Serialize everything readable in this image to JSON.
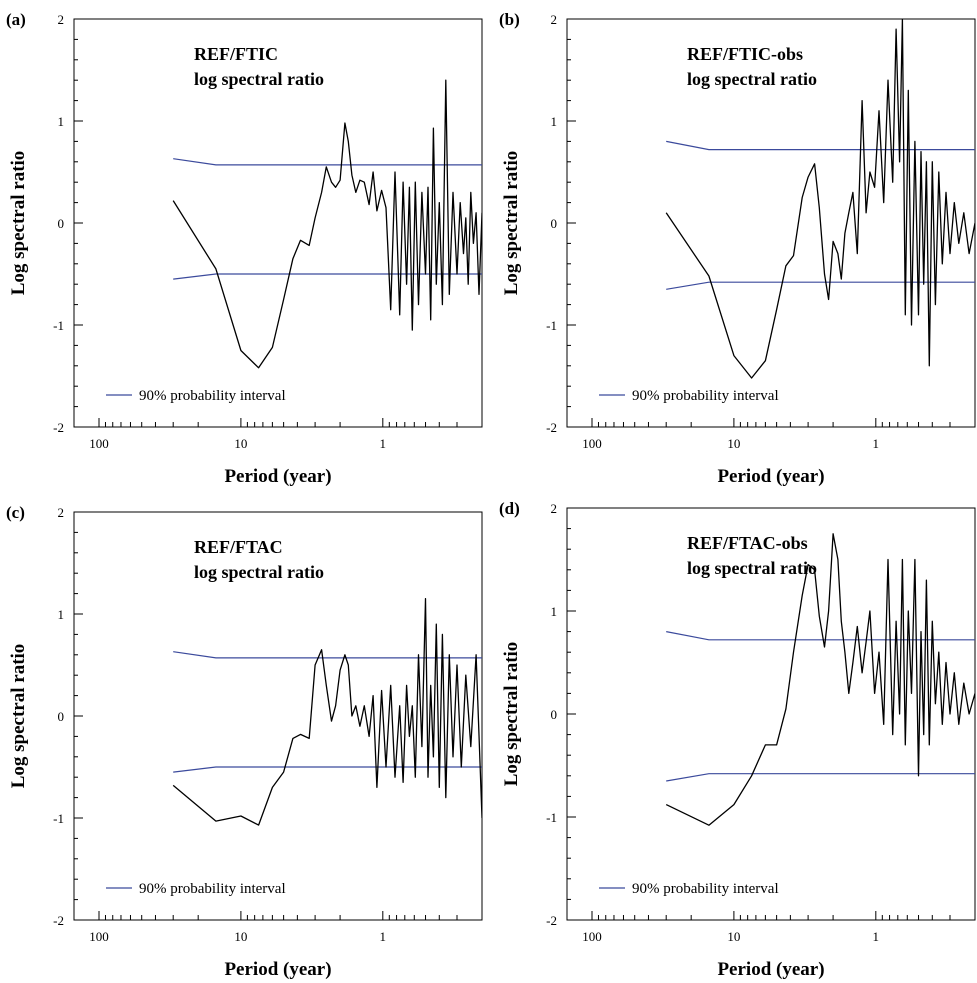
{
  "chart_data": [
    {
      "type": "line",
      "panel_label": "(a)",
      "title_lines": [
        "REF/FTIC",
        "log spectral ratio"
      ],
      "xlabel": "Period (year)",
      "ylabel": "Log spectral ratio",
      "x_scale": "log-reversed",
      "xlim": [
        150,
        0.2
      ],
      "ylim": [
        -2,
        2
      ],
      "x_ticks": [
        100,
        10,
        1
      ],
      "y_ticks": [
        -2,
        -1,
        0,
        1,
        2
      ],
      "legend": "90% probability interval",
      "legend_location": "bottom-left",
      "colors": {
        "ratio": "#000000",
        "interval": "#3b4a9c"
      },
      "interval_upper": {
        "x": [
          30,
          15,
          0.2
        ],
        "y": [
          0.63,
          0.57,
          0.57
        ]
      },
      "interval_lower": {
        "x": [
          30,
          15,
          0.2
        ],
        "y": [
          -0.55,
          -0.5,
          -0.5
        ]
      },
      "series": [
        {
          "x": [
            30,
            15,
            10,
            7.5,
            6,
            5,
            4.3,
            3.8,
            3.3,
            3,
            2.7,
            2.5,
            2.3,
            2.15,
            2,
            1.85,
            1.75,
            1.65,
            1.55,
            1.45,
            1.35,
            1.25,
            1.17,
            1.1,
            1.02,
            0.95,
            0.88,
            0.82,
            0.76,
            0.72,
            0.68,
            0.65,
            0.62,
            0.59,
            0.56,
            0.53,
            0.5,
            0.48,
            0.46,
            0.44,
            0.42,
            0.4,
            0.38,
            0.36,
            0.34,
            0.32,
            0.3,
            0.285,
            0.27,
            0.26,
            0.25,
            0.24,
            0.23,
            0.22,
            0.21,
            0.2
          ],
          "y": [
            0.22,
            -0.45,
            -1.25,
            -1.42,
            -1.22,
            -0.75,
            -0.35,
            -0.17,
            -0.22,
            0.05,
            0.3,
            0.55,
            0.4,
            0.35,
            0.42,
            0.98,
            0.8,
            0.47,
            0.3,
            0.42,
            0.4,
            0.18,
            0.5,
            0.12,
            0.32,
            0.15,
            -0.85,
            0.5,
            -0.9,
            0.4,
            -0.6,
            0.35,
            -1.05,
            0.4,
            -0.8,
            0.3,
            -0.5,
            0.35,
            -0.95,
            0.93,
            -0.6,
            0.2,
            -0.8,
            1.4,
            -0.7,
            0.3,
            -0.5,
            0.2,
            -0.3,
            0.05,
            -0.6,
            0.3,
            -0.2,
            0.1,
            -0.7,
            0.1
          ]
        }
      ]
    },
    {
      "type": "line",
      "panel_label": "(b)",
      "title_lines": [
        "REF/FTIC-obs",
        "log spectral ratio"
      ],
      "xlabel": "Period (year)",
      "ylabel": "Log spectral ratio",
      "x_scale": "log-reversed",
      "xlim": [
        150,
        0.2
      ],
      "ylim": [
        -2,
        2
      ],
      "x_ticks": [
        100,
        10,
        1
      ],
      "y_ticks": [
        -2,
        -1,
        0,
        1,
        2
      ],
      "legend": "90% probability interval",
      "legend_location": "bottom-left",
      "colors": {
        "ratio": "#000000",
        "interval": "#3b4a9c"
      },
      "interval_upper": {
        "x": [
          30,
          15,
          0.2
        ],
        "y": [
          0.8,
          0.72,
          0.72
        ]
      },
      "interval_lower": {
        "x": [
          30,
          15,
          0.2
        ],
        "y": [
          -0.65,
          -0.58,
          -0.58
        ]
      },
      "series": [
        {
          "x": [
            30,
            15,
            10,
            7.5,
            6,
            5,
            4.3,
            3.8,
            3.3,
            3,
            2.7,
            2.5,
            2.3,
            2.15,
            2,
            1.85,
            1.75,
            1.65,
            1.55,
            1.45,
            1.35,
            1.25,
            1.17,
            1.1,
            1.02,
            0.95,
            0.88,
            0.82,
            0.76,
            0.72,
            0.68,
            0.65,
            0.62,
            0.59,
            0.56,
            0.53,
            0.5,
            0.48,
            0.46,
            0.44,
            0.42,
            0.4,
            0.38,
            0.36,
            0.34,
            0.32,
            0.3,
            0.28,
            0.26,
            0.24,
            0.22,
            0.2
          ],
          "y": [
            0.1,
            -0.52,
            -1.3,
            -1.52,
            -1.35,
            -0.85,
            -0.42,
            -0.32,
            0.25,
            0.45,
            0.58,
            0.15,
            -0.5,
            -0.75,
            -0.18,
            -0.3,
            -0.55,
            -0.1,
            0.1,
            0.3,
            -0.3,
            1.2,
            0.1,
            0.5,
            0.35,
            1.1,
            0.2,
            1.4,
            0.4,
            1.9,
            0.6,
            2.0,
            -0.9,
            1.3,
            -1.0,
            0.8,
            -0.9,
            0.7,
            -0.6,
            0.6,
            -1.4,
            0.6,
            -0.8,
            0.5,
            -0.4,
            0.3,
            -0.3,
            0.2,
            -0.2,
            0.1,
            -0.3,
            0.0
          ]
        }
      ]
    },
    {
      "type": "line",
      "panel_label": "(c)",
      "title_lines": [
        "REF/FTAC",
        "log spectral ratio"
      ],
      "xlabel": "Period (year)",
      "ylabel": "Log spectral ratio",
      "x_scale": "log-reversed",
      "xlim": [
        150,
        0.2
      ],
      "ylim": [
        -2,
        2
      ],
      "x_ticks": [
        100,
        10,
        1
      ],
      "y_ticks": [
        -2,
        -1,
        0,
        1,
        2
      ],
      "legend": "90% probability interval",
      "legend_location": "bottom-left",
      "colors": {
        "ratio": "#000000",
        "interval": "#3b4a9c"
      },
      "interval_upper": {
        "x": [
          30,
          15,
          0.2
        ],
        "y": [
          0.63,
          0.57,
          0.57
        ]
      },
      "interval_lower": {
        "x": [
          30,
          15,
          0.2
        ],
        "y": [
          -0.55,
          -0.5,
          -0.5
        ]
      },
      "series": [
        {
          "x": [
            30,
            15,
            10,
            7.5,
            6,
            5,
            4.3,
            3.8,
            3.3,
            3,
            2.7,
            2.5,
            2.3,
            2.15,
            2,
            1.85,
            1.75,
            1.65,
            1.55,
            1.45,
            1.35,
            1.25,
            1.17,
            1.1,
            1.02,
            0.95,
            0.88,
            0.82,
            0.76,
            0.72,
            0.68,
            0.65,
            0.62,
            0.59,
            0.56,
            0.53,
            0.5,
            0.48,
            0.46,
            0.44,
            0.42,
            0.4,
            0.38,
            0.36,
            0.34,
            0.32,
            0.3,
            0.28,
            0.26,
            0.24,
            0.22,
            0.2
          ],
          "y": [
            -0.68,
            -1.03,
            -0.98,
            -1.07,
            -0.7,
            -0.55,
            -0.22,
            -0.18,
            -0.22,
            0.5,
            0.65,
            0.3,
            -0.05,
            0.1,
            0.45,
            0.6,
            0.5,
            0.0,
            0.1,
            -0.1,
            0.1,
            -0.2,
            0.2,
            -0.7,
            0.25,
            -0.5,
            0.3,
            -0.6,
            0.1,
            -0.65,
            0.3,
            -0.2,
            0.1,
            -0.6,
            0.6,
            -0.3,
            1.15,
            -0.6,
            0.3,
            -0.4,
            0.9,
            -0.7,
            0.8,
            -0.8,
            0.6,
            -0.4,
            0.5,
            -0.5,
            0.4,
            -0.3,
            0.6,
            -1.0
          ]
        }
      ]
    },
    {
      "type": "line",
      "panel_label": "(d)",
      "title_lines": [
        "REF/FTAC-obs",
        "log spectral ratio"
      ],
      "xlabel": "Period (year)",
      "ylabel": "Log spectral ratio",
      "x_scale": "log-reversed",
      "xlim": [
        150,
        0.2
      ],
      "ylim": [
        -2,
        2
      ],
      "x_ticks": [
        100,
        10,
        1
      ],
      "y_ticks": [
        -2,
        -1,
        0,
        1,
        2
      ],
      "legend": "90% probability interval",
      "legend_location": "bottom-left",
      "colors": {
        "ratio": "#000000",
        "interval": "#3b4a9c"
      },
      "interval_upper": {
        "x": [
          30,
          15,
          0.2
        ],
        "y": [
          0.8,
          0.72,
          0.72
        ]
      },
      "interval_lower": {
        "x": [
          30,
          15,
          0.2
        ],
        "y": [
          -0.65,
          -0.58,
          -0.58
        ]
      },
      "series": [
        {
          "x": [
            30,
            15,
            10,
            7.5,
            6,
            5,
            4.3,
            3.8,
            3.3,
            3,
            2.7,
            2.5,
            2.3,
            2.15,
            2,
            1.85,
            1.75,
            1.65,
            1.55,
            1.45,
            1.35,
            1.25,
            1.17,
            1.1,
            1.02,
            0.95,
            0.88,
            0.82,
            0.76,
            0.72,
            0.68,
            0.65,
            0.62,
            0.59,
            0.56,
            0.53,
            0.5,
            0.48,
            0.46,
            0.44,
            0.42,
            0.4,
            0.38,
            0.36,
            0.34,
            0.32,
            0.3,
            0.28,
            0.26,
            0.24,
            0.22,
            0.2
          ],
          "y": [
            -0.88,
            -1.08,
            -0.88,
            -0.6,
            -0.3,
            -0.3,
            0.05,
            0.6,
            1.15,
            1.45,
            1.4,
            0.95,
            0.65,
            1.0,
            1.75,
            1.5,
            0.9,
            0.6,
            0.2,
            0.5,
            0.85,
            0.4,
            0.7,
            1.0,
            0.2,
            0.6,
            -0.1,
            1.5,
            -0.2,
            0.9,
            0.0,
            1.5,
            -0.3,
            1.0,
            0.2,
            1.5,
            -0.6,
            0.8,
            -0.2,
            1.3,
            -0.3,
            0.9,
            0.1,
            0.6,
            -0.1,
            0.5,
            0.0,
            0.4,
            -0.1,
            0.3,
            0.0,
            0.2
          ]
        }
      ]
    }
  ]
}
